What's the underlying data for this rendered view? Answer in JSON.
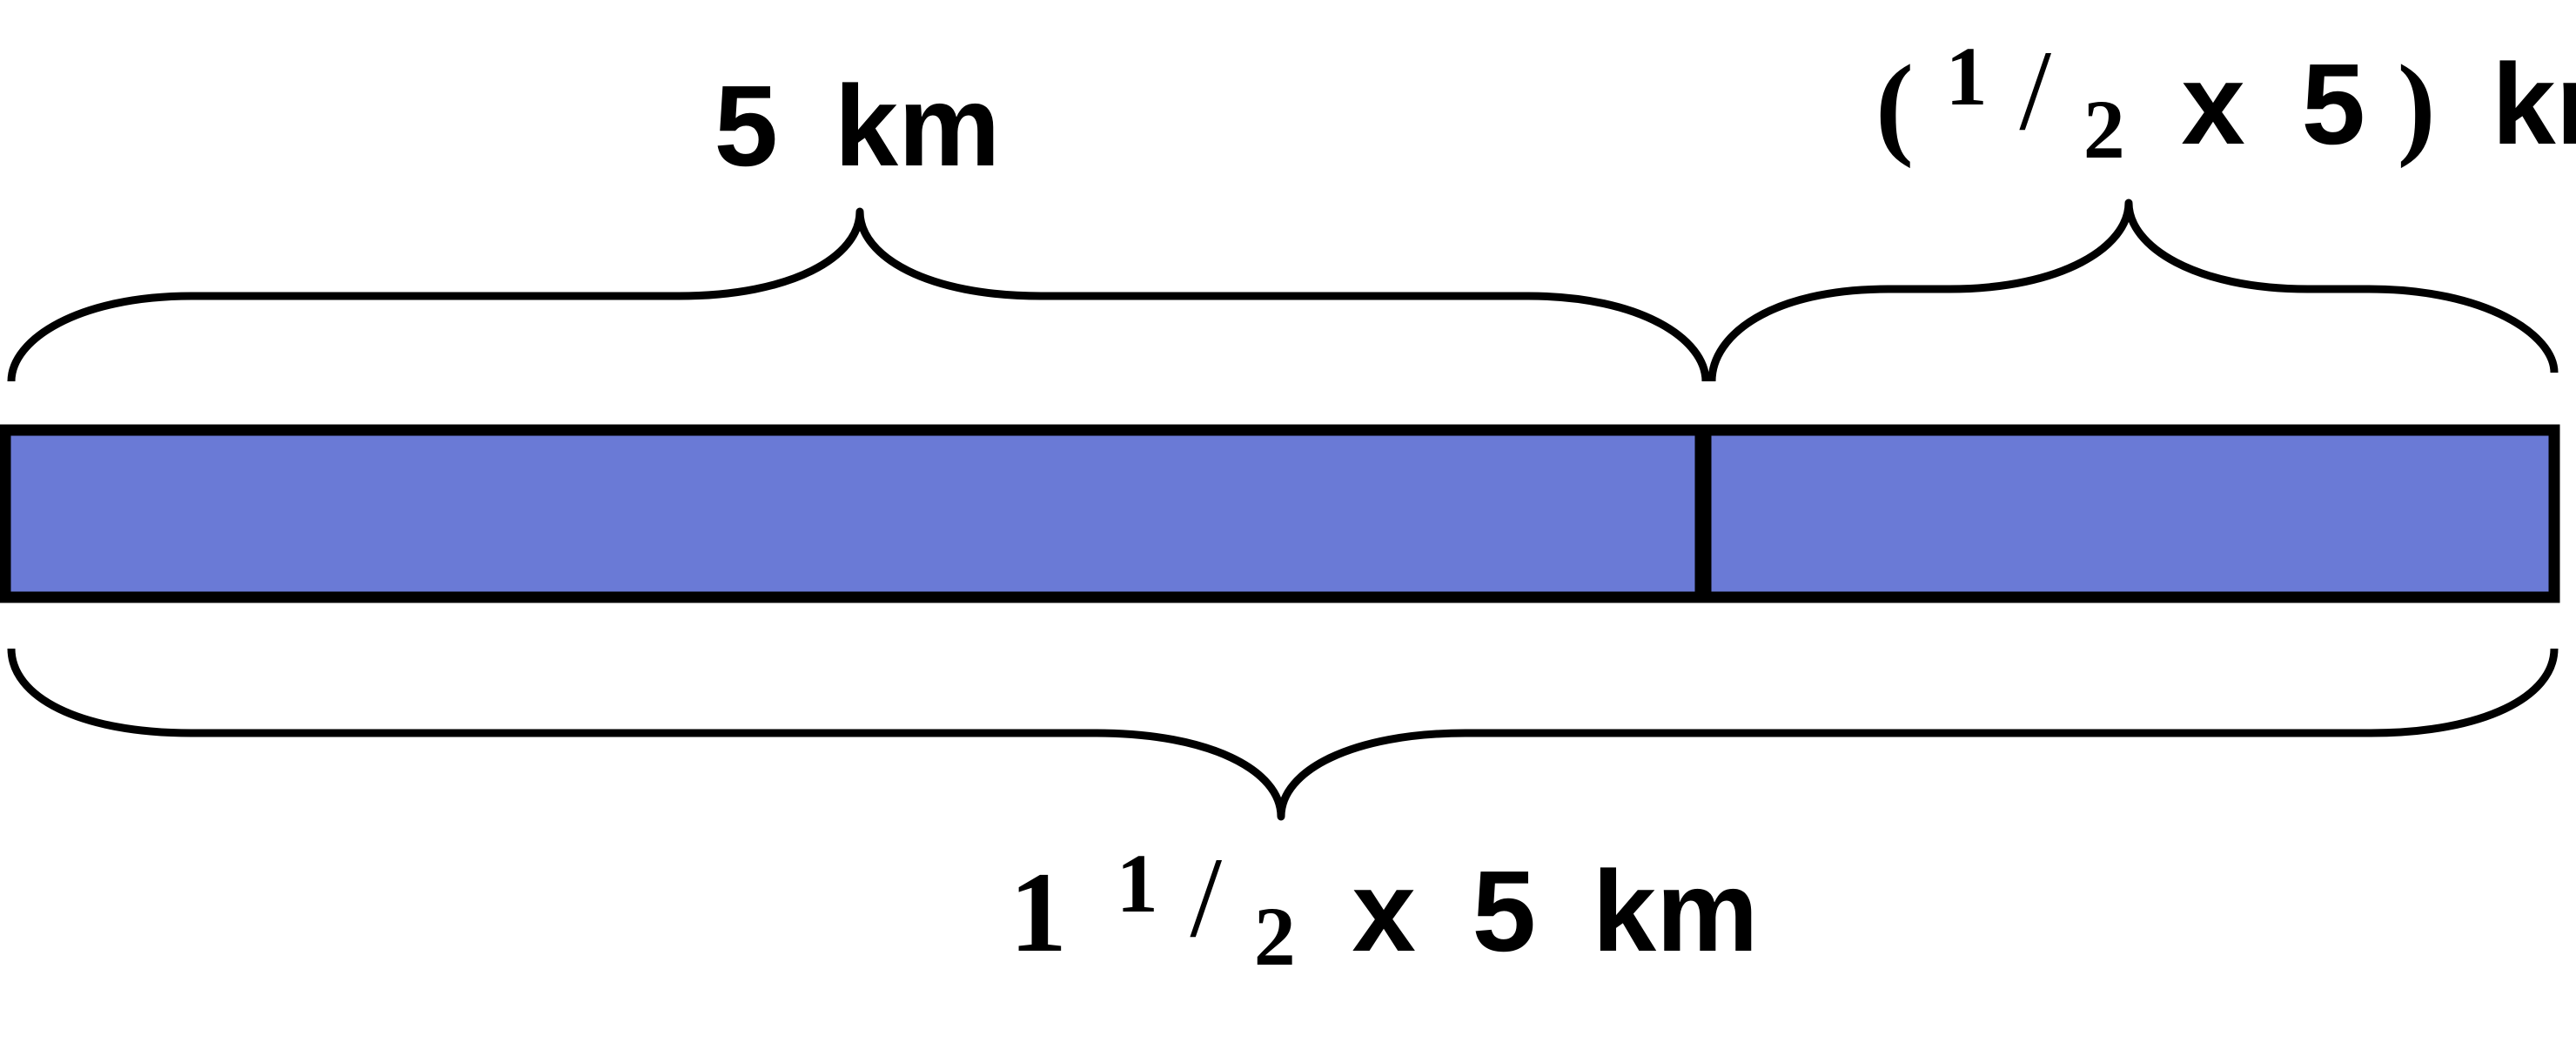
{
  "colors": {
    "bar_fill": "#6a7ad6",
    "stroke": "#000000",
    "background": "#ffffff"
  },
  "bar": {
    "segments": [
      {
        "length_km": 5,
        "fraction_of_whole": 0.6667
      },
      {
        "length_km": 2.5,
        "fraction_of_whole": 0.3333
      }
    ]
  },
  "labels": {
    "top_left": {
      "value": "5",
      "unit": "km"
    },
    "top_right": {
      "open_paren": "(",
      "frac_num": "1",
      "frac_slash": "/",
      "frac_den": "2",
      "times": "x",
      "value": "5",
      "close_paren": ")",
      "unit": "km"
    },
    "bottom": {
      "whole": "1",
      "frac_num": "1",
      "frac_slash": "/",
      "frac_den": "2",
      "times": "x",
      "value": "5",
      "unit": "km"
    }
  }
}
